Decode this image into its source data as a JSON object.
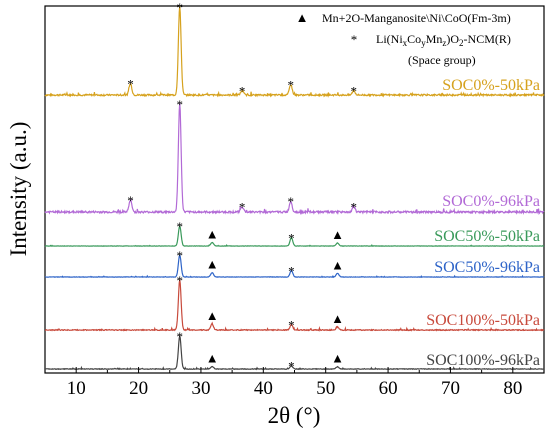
{
  "chart_data": {
    "type": "line",
    "title": "",
    "xlabel": "2θ (°)",
    "ylabel": "Intensity (a.u.)",
    "xlim": [
      5,
      85
    ],
    "xticks": [
      10,
      20,
      30,
      40,
      50,
      60,
      70,
      80
    ],
    "grid": false,
    "legend": {
      "placement": "top-right",
      "entries": [
        {
          "symbol": "▲",
          "label": "Mn+2O-Manganosite\\Ni\\CoO(Fm-3m)"
        },
        {
          "symbol": "*",
          "label_parts": [
            "Li(Ni",
            "x",
            "Co",
            "y",
            "Mn",
            "z",
            ")O",
            "2",
            "-NCM(R)"
          ]
        },
        {
          "symbol": "",
          "label": "(Space group)"
        }
      ]
    },
    "series": [
      {
        "name": "SOC0%-50kPa",
        "color": "#d6a21e",
        "baseline": 2.2,
        "scale": 7.0,
        "peaks": [
          [
            18.7,
            0.13
          ],
          [
            26.6,
            1.0
          ],
          [
            36.6,
            0.05
          ],
          [
            44.4,
            0.12
          ],
          [
            54.5,
            0.05
          ]
        ],
        "stars": [
          18.7,
          26.6,
          36.6,
          44.4,
          54.5
        ],
        "triangles": []
      },
      {
        "name": "SOC0%-96kPa",
        "color": "#b26ad6",
        "baseline": 3.9,
        "scale": 9.4,
        "peaks": [
          [
            18.7,
            0.11
          ],
          [
            26.6,
            1.0
          ],
          [
            36.6,
            0.05
          ],
          [
            44.4,
            0.1
          ],
          [
            54.5,
            0.05
          ]
        ],
        "stars": [
          18.7,
          26.6,
          36.6,
          44.4,
          54.5
        ],
        "triangles": []
      },
      {
        "name": "SOC50%-50kPa",
        "color": "#3a9a5b",
        "baseline": 2.1,
        "scale": 1.7,
        "peaks": [
          [
            26.6,
            1.0
          ],
          [
            31.8,
            0.18
          ],
          [
            44.5,
            0.42
          ],
          [
            51.9,
            0.15
          ]
        ],
        "stars": [
          26.6,
          44.5
        ],
        "triangles": [
          31.8,
          51.9
        ]
      },
      {
        "name": "SOC50%-96kPa",
        "color": "#2e64c8",
        "baseline": 1.9,
        "scale": 1.8,
        "peaks": [
          [
            26.6,
            1.0
          ],
          [
            31.8,
            0.2
          ],
          [
            44.5,
            0.3
          ],
          [
            51.9,
            0.17
          ]
        ],
        "stars": [
          26.6,
          44.5
        ],
        "triangles": [
          31.8,
          51.9
        ]
      },
      {
        "name": "SOC100%-50kPa",
        "color": "#c84a3c",
        "baseline": 2.8,
        "scale": 4.4,
        "peaks": [
          [
            26.6,
            1.0
          ],
          [
            31.8,
            0.12
          ],
          [
            44.5,
            0.11
          ],
          [
            51.9,
            0.06
          ]
        ],
        "stars": [
          26.6,
          44.5
        ],
        "triangles": [
          31.8,
          51.9
        ]
      },
      {
        "name": "SOC100%-96kPa",
        "color": "#444444",
        "baseline": 2.3,
        "scale": 2.9,
        "peaks": [
          [
            26.6,
            1.0
          ],
          [
            31.8,
            0.08
          ],
          [
            44.5,
            0.1
          ],
          [
            51.9,
            0.07
          ]
        ],
        "stars": [
          26.6,
          44.5
        ],
        "triangles": [
          31.8,
          51.9
        ]
      }
    ]
  }
}
